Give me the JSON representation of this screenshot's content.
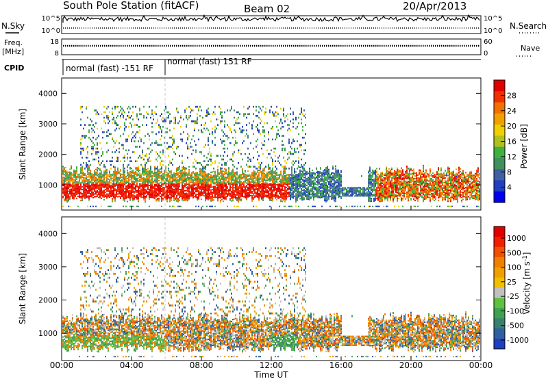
{
  "header": {
    "station_title": "South Pole Station (fitACF)",
    "beam_label": "Beam 02",
    "date_label": "20/Apr/2013"
  },
  "side_labels": {
    "nsky": "N.Sky",
    "freq_line1": "Freq.",
    "freq_line2": "[MHz]",
    "cpid": "CPID",
    "nsearch": "N.Search",
    "nave": "Nave"
  },
  "mini_axes": {
    "nsky_left_ticks": [
      "10^5",
      "10^0"
    ],
    "nsearch_right_ticks": [
      "10^5",
      "10^0"
    ],
    "freq_left_ticks": [
      "18",
      "8"
    ],
    "nave_right_ticks": [
      "60",
      "0"
    ]
  },
  "cpid_modes": [
    "normal (fast) -151 RF",
    "normal (fast) 151 RF"
  ],
  "chart_data": [
    {
      "type": "heatmap",
      "panel": "power",
      "ylabel": "Slant Range [km]",
      "yticks": [
        "1000",
        "2000",
        "3000",
        "4000"
      ],
      "ylim": [
        180,
        4500
      ],
      "colorbar_label": "Power [dB]",
      "colorbar_ticks": [
        "4",
        "8",
        "12",
        "16",
        "20",
        "24",
        "28"
      ],
      "colorbar_range": [
        0,
        32
      ],
      "colorbar_colors": [
        "#0000ee",
        "#2040c0",
        "#4060a0",
        "#409060",
        "#40b040",
        "#b0c020",
        "#f0d000",
        "#f0a000",
        "#f07000",
        "#f03000",
        "#e00000"
      ]
    },
    {
      "type": "heatmap",
      "panel": "velocity",
      "ylabel": "Slant Range [km]",
      "yticks": [
        "1000",
        "2000",
        "3000",
        "4000"
      ],
      "ylim": [
        180,
        4500
      ],
      "colorbar_label": "Velocity [m s^-1]",
      "colorbar_ticks": [
        "1000",
        "500",
        "100",
        "25",
        "-25",
        "-100",
        "-500",
        "-1000"
      ],
      "colorbar_colors": [
        "#1e40c0",
        "#3060a0",
        "#3a8070",
        "#40a050",
        "#60c040",
        "#c0c0c0",
        "#f0c000",
        "#f0a000",
        "#f08000",
        "#f05000",
        "#f02000",
        "#e00000"
      ]
    }
  ],
  "xaxis": {
    "label": "Time UT",
    "ticks": [
      "00:00",
      "04:00",
      "08:00",
      "12:00",
      "16:00",
      "20:00",
      "00:00"
    ]
  }
}
